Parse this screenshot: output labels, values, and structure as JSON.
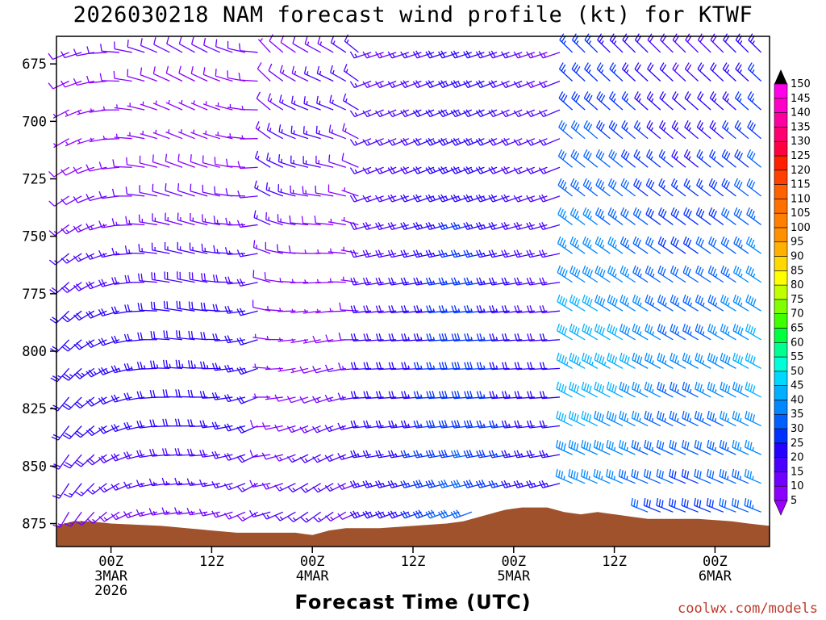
{
  "chart_data": {
    "type": "wind-barb-profile",
    "title": "2026030218 NAM forecast wind profile (kt) for KTWF",
    "xlabel": "Forecast Time (UTC)",
    "ylabel": "",
    "credit": "coolwx.com/models",
    "x_range_hours": [
      -6.5,
      78.5
    ],
    "y_range_hpa": [
      663,
      885
    ],
    "y_ticks": [
      675,
      700,
      725,
      750,
      775,
      800,
      825,
      850,
      875
    ],
    "x_ticks": [
      {
        "hour": 0,
        "lines": [
          "00Z",
          "3MAR",
          "2026"
        ]
      },
      {
        "hour": 12,
        "lines": [
          "12Z"
        ]
      },
      {
        "hour": 24,
        "lines": [
          "00Z",
          "4MAR"
        ]
      },
      {
        "hour": 36,
        "lines": [
          "12Z"
        ]
      },
      {
        "hour": 48,
        "lines": [
          "00Z",
          "5MAR"
        ]
      },
      {
        "hour": 60,
        "lines": [
          "12Z"
        ]
      },
      {
        "hour": 72,
        "lines": [
          "00Z",
          "6MAR"
        ]
      }
    ],
    "colorbar": {
      "levels": [
        5,
        10,
        15,
        20,
        25,
        30,
        35,
        40,
        45,
        50,
        55,
        60,
        65,
        70,
        75,
        80,
        85,
        90,
        95,
        100,
        105,
        110,
        115,
        120,
        125,
        130,
        135,
        140,
        145,
        150
      ],
      "colors": [
        "#8c00ff",
        "#7000ff",
        "#4a00ff",
        "#2600ff",
        "#0030ff",
        "#0060ff",
        "#0088ff",
        "#00b0ff",
        "#00d8ff",
        "#00ffd8",
        "#00ff90",
        "#00ff40",
        "#40ff00",
        "#80ff00",
        "#c0ff00",
        "#ffff00",
        "#ffd800",
        "#ffb000",
        "#ff9000",
        "#ff8000",
        "#ff7000",
        "#ff6000",
        "#ff4000",
        "#ff2000",
        "#ff0040",
        "#ff0070",
        "#ff00a0",
        "#ff00c8",
        "#ff00e8"
      ]
    },
    "wind_speed_kt_estimates": {
      "early_period_0_to_18Z": [
        10,
        25
      ],
      "day2_low_levels": [
        15,
        30
      ],
      "late_period_after_5MAR_06Z_low_levels": [
        30,
        45
      ],
      "late_period_upper_levels": [
        20,
        35
      ]
    },
    "wind_direction_notes": {
      "day1": "southwest to west, veering to north aloft",
      "day2": "west-southwest aloft, southwest low levels",
      "late": "west-northwest to northwest"
    },
    "terrain_pressure_hpa": [
      [
        -6.5,
        876
      ],
      [
        -5.5,
        875
      ],
      [
        -4.5,
        874
      ],
      [
        -2.5,
        874
      ],
      [
        0,
        875
      ],
      [
        6,
        876
      ],
      [
        9,
        877
      ],
      [
        12,
        878
      ],
      [
        15,
        879
      ],
      [
        18,
        879
      ],
      [
        20,
        879
      ],
      [
        22,
        879
      ],
      [
        24,
        880
      ],
      [
        26,
        878
      ],
      [
        28,
        877
      ],
      [
        32,
        877
      ],
      [
        36,
        876
      ],
      [
        40,
        875
      ],
      [
        42,
        874
      ],
      [
        44,
        872
      ],
      [
        46,
        870
      ],
      [
        47,
        869
      ],
      [
        49,
        868
      ],
      [
        52,
        868
      ],
      [
        54,
        870
      ],
      [
        56,
        871
      ],
      [
        58,
        870
      ],
      [
        60,
        871
      ],
      [
        62,
        872
      ],
      [
        64,
        873
      ],
      [
        66,
        873
      ],
      [
        70,
        873
      ],
      [
        74,
        874
      ],
      [
        76,
        875
      ],
      [
        78.5,
        876
      ]
    ]
  }
}
